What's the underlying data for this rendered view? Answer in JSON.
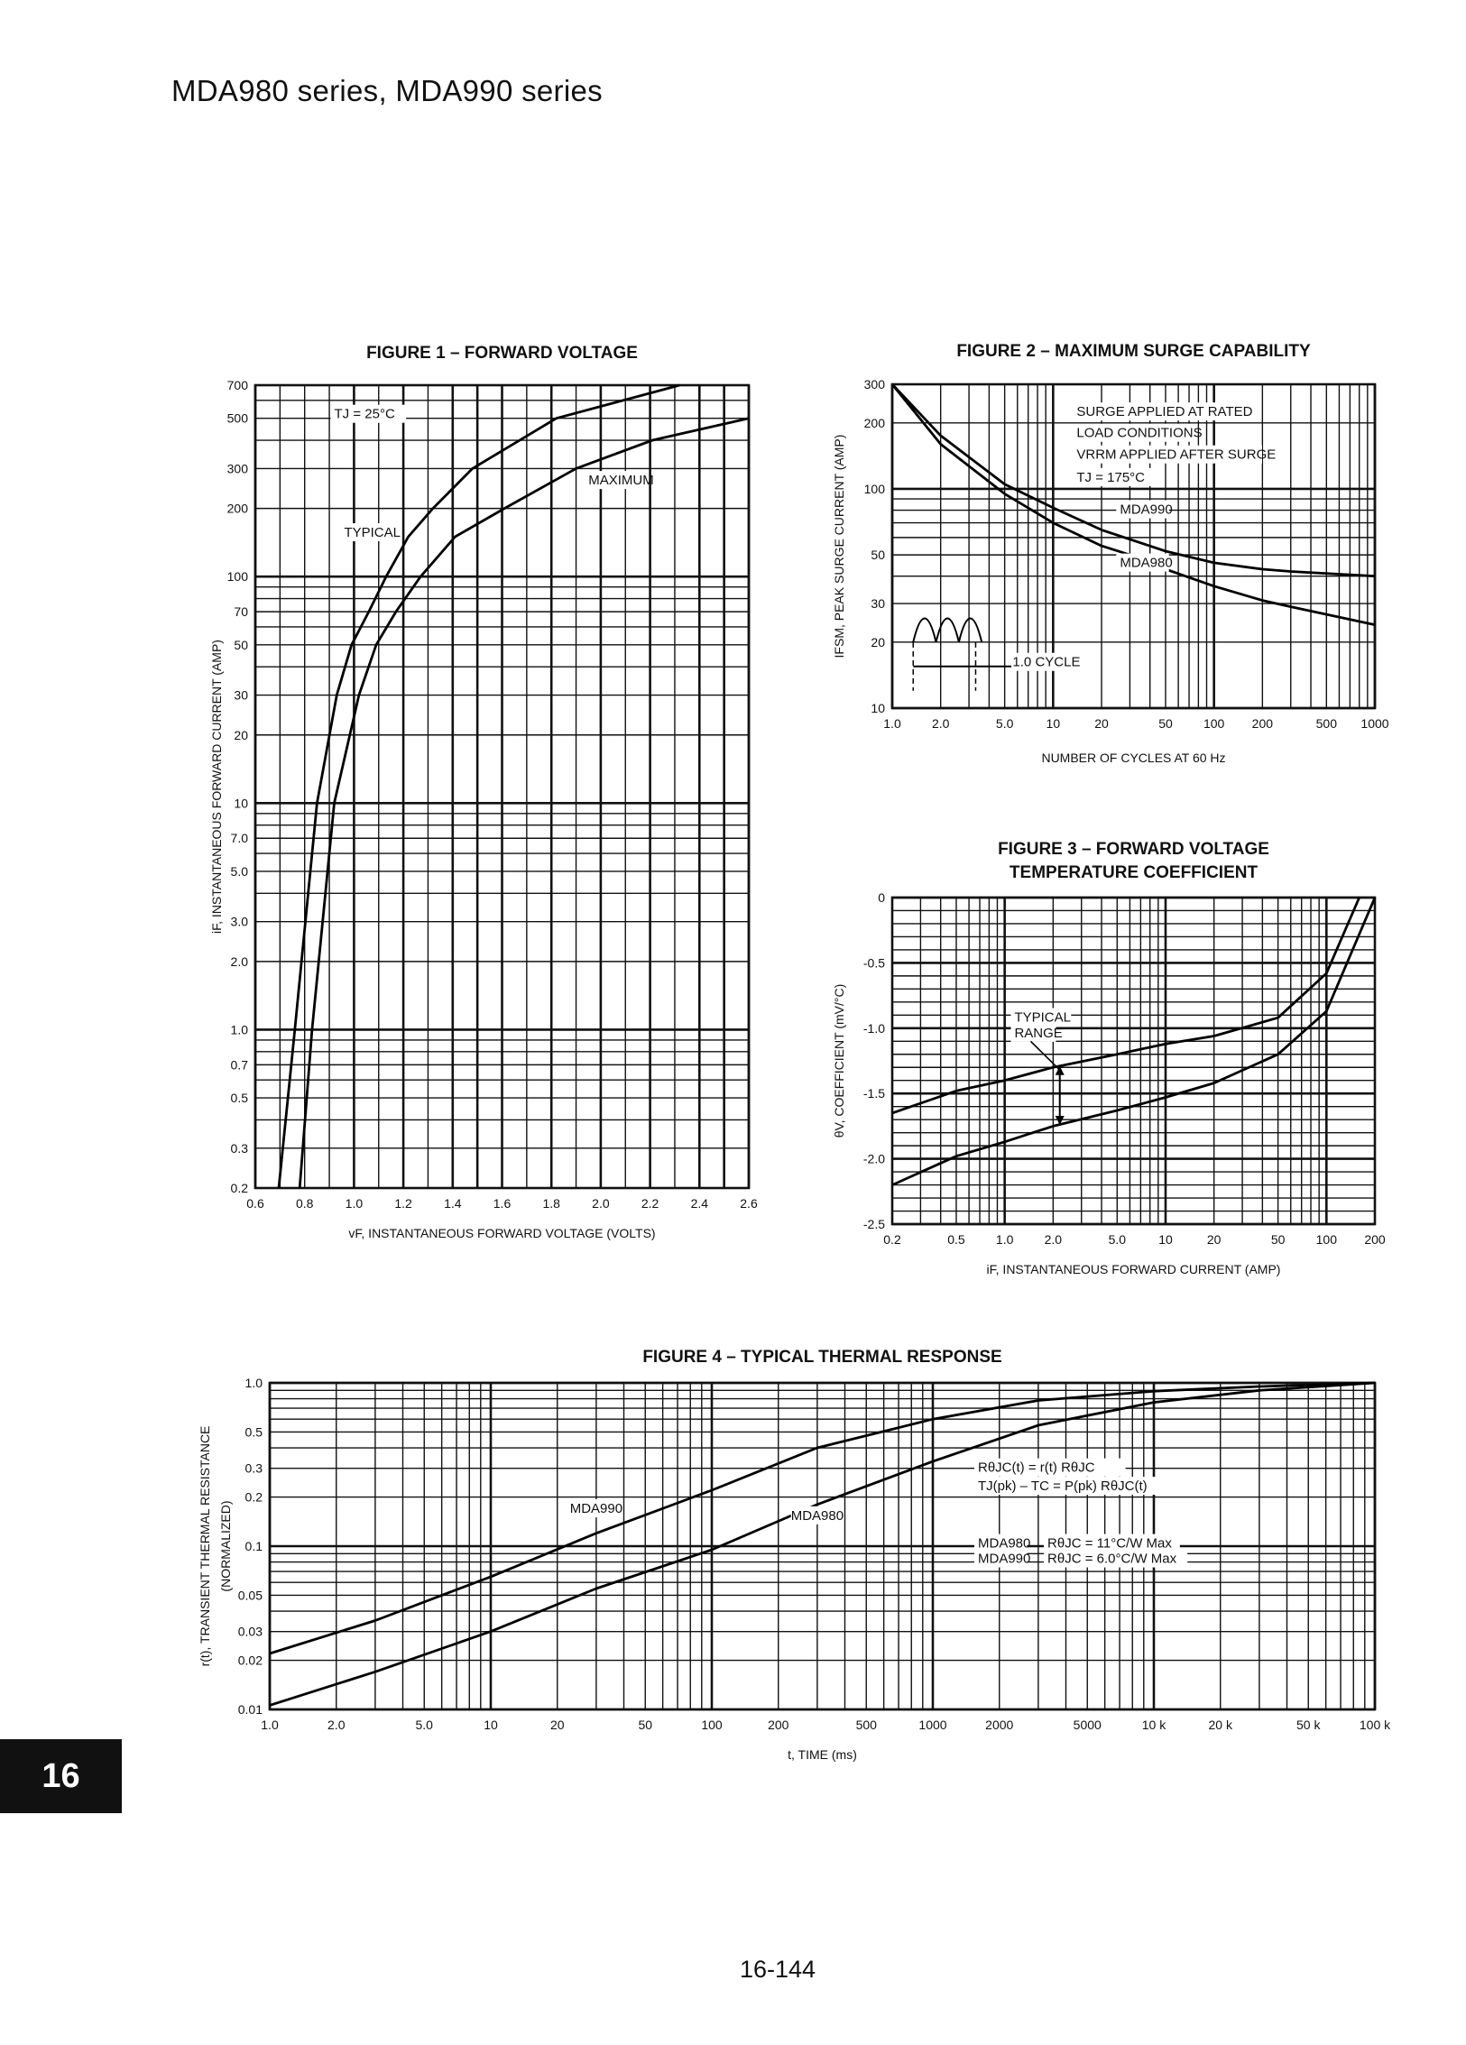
{
  "header": {
    "title": "MDA980 series, MDA990 series"
  },
  "footer": {
    "page_number": "16-144",
    "section_tab": "16"
  },
  "chart_data": [
    {
      "id": "fig1",
      "type": "line",
      "title": [
        "FIGURE 1 – FORWARD VOLTAGE"
      ],
      "xlabel": "vF, INSTANTANEOUS FORWARD VOLTAGE (VOLTS)",
      "ylabel": [
        "iF, INSTANTANEOUS FORWARD CURRENT (AMP)"
      ],
      "xscale": "linear",
      "yscale": "log",
      "xlim": [
        0.6,
        2.6
      ],
      "ylim": [
        0.2,
        700
      ],
      "grid": true,
      "xticks": [
        {
          "v": 0.6,
          "l": "0.6"
        },
        {
          "v": 0.8,
          "l": "0.8"
        },
        {
          "v": 1.0,
          "l": "1.0"
        },
        {
          "v": 1.2,
          "l": "1.2"
        },
        {
          "v": 1.4,
          "l": "1.4"
        },
        {
          "v": 1.6,
          "l": "1.6"
        },
        {
          "v": 1.8,
          "l": "1.8"
        },
        {
          "v": 2.0,
          "l": "2.0"
        },
        {
          "v": 2.2,
          "l": "2.2"
        },
        {
          "v": 2.4,
          "l": "2.4"
        },
        {
          "v": 2.6,
          "l": "2.6"
        }
      ],
      "yticks": [
        {
          "v": 0.2,
          "l": "0.2"
        },
        {
          "v": 0.3,
          "l": "0.3"
        },
        {
          "v": 0.5,
          "l": "0.5"
        },
        {
          "v": 0.7,
          "l": "0.7"
        },
        {
          "v": 1,
          "l": "1.0"
        },
        {
          "v": 2,
          "l": "2.0"
        },
        {
          "v": 3,
          "l": "3.0"
        },
        {
          "v": 5,
          "l": "5.0"
        },
        {
          "v": 7,
          "l": "7.0"
        },
        {
          "v": 10,
          "l": "10"
        },
        {
          "v": 20,
          "l": "20"
        },
        {
          "v": 30,
          "l": "30"
        },
        {
          "v": 50,
          "l": "50"
        },
        {
          "v": 70,
          "l": "70"
        },
        {
          "v": 100,
          "l": "100"
        },
        {
          "v": 200,
          "l": "200"
        },
        {
          "v": 300,
          "l": "300"
        },
        {
          "v": 500,
          "l": "500"
        },
        {
          "v": 700,
          "l": "700"
        }
      ],
      "series": [
        {
          "name": "TYPICAL",
          "points": [
            [
              0.695,
              0.2
            ],
            [
              0.76,
              1
            ],
            [
              0.85,
              10
            ],
            [
              0.93,
              30
            ],
            [
              0.99,
              50
            ],
            [
              1.06,
              70
            ],
            [
              1.13,
              100
            ],
            [
              1.22,
              150
            ],
            [
              1.32,
              200
            ],
            [
              1.48,
              300
            ],
            [
              1.82,
              500
            ],
            [
              2.32,
              700
            ]
          ]
        },
        {
          "name": "MAXIMUM",
          "points": [
            [
              0.78,
              0.2
            ],
            [
              0.83,
              1
            ],
            [
              0.92,
              10
            ],
            [
              1.02,
              30
            ],
            [
              1.09,
              50
            ],
            [
              1.17,
              70
            ],
            [
              1.27,
              100
            ],
            [
              1.41,
              150
            ],
            [
              1.61,
              200
            ],
            [
              1.9,
              300
            ],
            [
              2.21,
              400
            ],
            [
              2.6,
              500
            ]
          ]
        }
      ],
      "annotations": [
        "TJ = 25°C",
        "TYPICAL",
        "MAXIMUM"
      ]
    },
    {
      "id": "fig2",
      "type": "line",
      "title": [
        "FIGURE 2 – MAXIMUM SURGE CAPABILITY"
      ],
      "xlabel": "NUMBER OF CYCLES AT 60 Hz",
      "ylabel": [
        "IFSM, PEAK SURGE CURRENT (AMP)"
      ],
      "xscale": "log",
      "yscale": "log",
      "xlim": [
        1,
        1000
      ],
      "ylim": [
        10,
        300
      ],
      "grid": true,
      "xticks": [
        {
          "v": 1,
          "l": "1.0"
        },
        {
          "v": 2,
          "l": "2.0"
        },
        {
          "v": 5,
          "l": "5.0"
        },
        {
          "v": 10,
          "l": "10"
        },
        {
          "v": 20,
          "l": "20"
        },
        {
          "v": 50,
          "l": "50"
        },
        {
          "v": 100,
          "l": "100"
        },
        {
          "v": 200,
          "l": "200"
        },
        {
          "v": 500,
          "l": "500"
        },
        {
          "v": 1000,
          "l": "1000"
        }
      ],
      "yticks": [
        {
          "v": 10,
          "l": "10"
        },
        {
          "v": 20,
          "l": "20"
        },
        {
          "v": 30,
          "l": "30"
        },
        {
          "v": 50,
          "l": "50"
        },
        {
          "v": 100,
          "l": "100"
        },
        {
          "v": 200,
          "l": "200"
        },
        {
          "v": 300,
          "l": "300"
        }
      ],
      "series": [
        {
          "name": "MDA990",
          "points": [
            [
              1,
              300
            ],
            [
              2,
              175
            ],
            [
              5,
              105
            ],
            [
              10,
              82
            ],
            [
              20,
              65
            ],
            [
              50,
              52
            ],
            [
              100,
              46
            ],
            [
              200,
              43
            ],
            [
              300,
              42
            ],
            [
              1000,
              40
            ]
          ]
        },
        {
          "name": "MDA980",
          "points": [
            [
              1,
              300
            ],
            [
              2,
              160
            ],
            [
              5,
              95
            ],
            [
              10,
              70
            ],
            [
              20,
              55
            ],
            [
              30,
              50
            ],
            [
              50,
              43
            ],
            [
              100,
              36
            ],
            [
              200,
              31
            ],
            [
              300,
              29
            ],
            [
              1000,
              24
            ]
          ]
        }
      ],
      "annotations": [
        "SURGE APPLIED AT RATED",
        "LOAD CONDITIONS",
        "VRRM APPLIED AFTER SURGE",
        "TJ = 175°C",
        "MDA990",
        "MDA980",
        "1.0 CYCLE"
      ]
    },
    {
      "id": "fig3",
      "type": "line",
      "title": [
        "FIGURE 3 – FORWARD VOLTAGE",
        "TEMPERATURE COEFFICIENT"
      ],
      "xlabel": "iF, INSTANTANEOUS FORWARD CURRENT (AMP)",
      "ylabel": [
        "θV, COEFFICIENT (mV/°C)"
      ],
      "xscale": "log",
      "yscale": "linear",
      "xlim": [
        0.2,
        200
      ],
      "ylim": [
        -2.5,
        0
      ],
      "grid": true,
      "xticks": [
        {
          "v": 0.2,
          "l": "0.2"
        },
        {
          "v": 0.5,
          "l": "0.5"
        },
        {
          "v": 1,
          "l": "1.0"
        },
        {
          "v": 2,
          "l": "2.0"
        },
        {
          "v": 5,
          "l": "5.0"
        },
        {
          "v": 10,
          "l": "10"
        },
        {
          "v": 20,
          "l": "20"
        },
        {
          "v": 50,
          "l": "50"
        },
        {
          "v": 100,
          "l": "100"
        },
        {
          "v": 200,
          "l": "200"
        }
      ],
      "yticks": [
        {
          "v": 0,
          "l": "0"
        },
        {
          "v": -0.5,
          "l": "-0.5"
        },
        {
          "v": -1.0,
          "l": "-1.0"
        },
        {
          "v": -1.5,
          "l": "-1.5"
        },
        {
          "v": -2.0,
          "l": "-2.0"
        },
        {
          "v": -2.5,
          "l": "-2.5"
        }
      ],
      "series": [
        {
          "name": "TYPICAL RANGE upper",
          "points": [
            [
              0.2,
              -1.65
            ],
            [
              0.5,
              -1.48
            ],
            [
              1,
              -1.4
            ],
            [
              2,
              -1.3
            ],
            [
              5,
              -1.2
            ],
            [
              10,
              -1.12
            ],
            [
              20,
              -1.06
            ],
            [
              50,
              -0.92
            ],
            [
              100,
              -0.58
            ],
            [
              160,
              0
            ]
          ]
        },
        {
          "name": "TYPICAL RANGE lower",
          "points": [
            [
              0.2,
              -2.2
            ],
            [
              0.5,
              -1.98
            ],
            [
              1,
              -1.87
            ],
            [
              2,
              -1.75
            ],
            [
              5,
              -1.63
            ],
            [
              10,
              -1.53
            ],
            [
              20,
              -1.42
            ],
            [
              50,
              -1.2
            ],
            [
              100,
              -0.87
            ],
            [
              200,
              0
            ]
          ]
        }
      ],
      "annotations": [
        "TYPICAL",
        "RANGE"
      ]
    },
    {
      "id": "fig4",
      "type": "line",
      "title": [
        "FIGURE 4 – TYPICAL THERMAL RESPONSE"
      ],
      "xlabel": "t, TIME (ms)",
      "ylabel": [
        "r(t), TRANSIENT THERMAL RESISTANCE",
        "(NORMALIZED)"
      ],
      "xscale": "log",
      "yscale": "log",
      "xlim": [
        1,
        100000
      ],
      "ylim": [
        0.01,
        1.0
      ],
      "grid": true,
      "xticks": [
        {
          "v": 1,
          "l": "1.0"
        },
        {
          "v": 2,
          "l": "2.0"
        },
        {
          "v": 5,
          "l": "5.0"
        },
        {
          "v": 10,
          "l": "10"
        },
        {
          "v": 20,
          "l": "20"
        },
        {
          "v": 50,
          "l": "50"
        },
        {
          "v": 100,
          "l": "100"
        },
        {
          "v": 200,
          "l": "200"
        },
        {
          "v": 500,
          "l": "500"
        },
        {
          "v": 1000,
          "l": "1000"
        },
        {
          "v": 2000,
          "l": "2000"
        },
        {
          "v": 5000,
          "l": "5000"
        },
        {
          "v": 10000,
          "l": "10 k"
        },
        {
          "v": 20000,
          "l": "20 k"
        },
        {
          "v": 50000,
          "l": "50 k"
        },
        {
          "v": 100000,
          "l": "100 k"
        }
      ],
      "yticks": [
        {
          "v": 0.01,
          "l": "0.01"
        },
        {
          "v": 0.02,
          "l": "0.02"
        },
        {
          "v": 0.03,
          "l": "0.03"
        },
        {
          "v": 0.05,
          "l": "0.05"
        },
        {
          "v": 0.1,
          "l": "0.1"
        },
        {
          "v": 0.2,
          "l": "0.2"
        },
        {
          "v": 0.3,
          "l": "0.3"
        },
        {
          "v": 0.5,
          "l": "0.5"
        },
        {
          "v": 1.0,
          "l": "1.0"
        }
      ],
      "series": [
        {
          "name": "MDA990",
          "points": [
            [
              1,
              0.022
            ],
            [
              3,
              0.035
            ],
            [
              10,
              0.065
            ],
            [
              30,
              0.12
            ],
            [
              100,
              0.22
            ],
            [
              300,
              0.4
            ],
            [
              1000,
              0.6
            ],
            [
              3000,
              0.78
            ],
            [
              10000,
              0.89
            ],
            [
              30000,
              0.95
            ],
            [
              100000,
              1.0
            ]
          ]
        },
        {
          "name": "MDA980",
          "points": [
            [
              1,
              0.0106
            ],
            [
              3,
              0.017
            ],
            [
              10,
              0.03
            ],
            [
              30,
              0.055
            ],
            [
              100,
              0.095
            ],
            [
              300,
              0.18
            ],
            [
              1000,
              0.33
            ],
            [
              3000,
              0.55
            ],
            [
              10000,
              0.76
            ],
            [
              30000,
              0.9
            ],
            [
              100000,
              1.0
            ]
          ]
        }
      ],
      "annotations": [
        "RθJC(t) = r(t) RθJC",
        "TJ(pk) – TC = P(pk) RθJC(t)",
        "MDA980",
        "RθJC = 11°C/W Max",
        "MDA990",
        "RθJC = 6.0°C/W Max",
        "MDA990",
        "MDA980"
      ]
    }
  ]
}
